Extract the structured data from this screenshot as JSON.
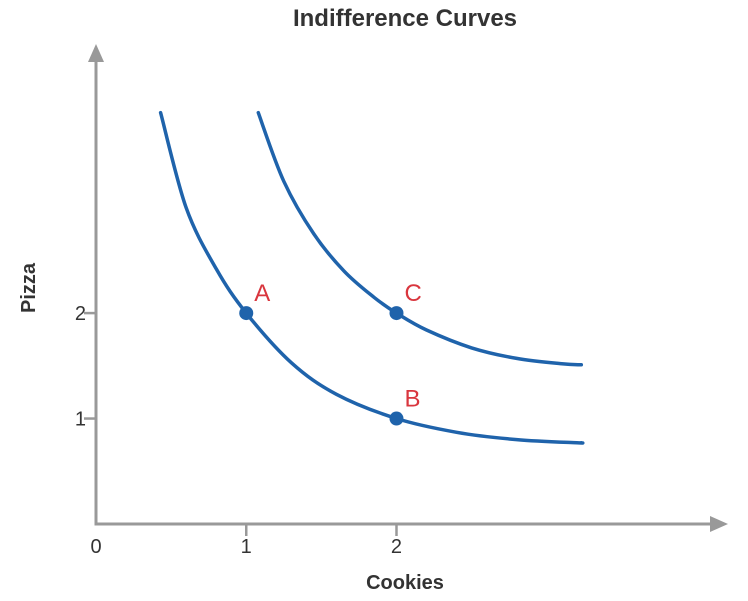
{
  "chart_data": {
    "type": "line",
    "title": "Indifference Curves",
    "xlabel": "Cookies",
    "ylabel": "Pizza",
    "origin_label": "0",
    "x_ticks": [
      {
        "value": 1,
        "label": "1"
      },
      {
        "value": 2,
        "label": "2"
      }
    ],
    "y_ticks": [
      {
        "value": 1,
        "label": "1"
      },
      {
        "value": 2,
        "label": "2"
      }
    ],
    "xlim": [
      0,
      4.1
    ],
    "ylim": [
      0,
      4.4
    ],
    "grid": false,
    "series": [
      {
        "x": [
          0.43,
          0.6,
          0.8,
          1,
          1.3,
          1.6,
          2,
          2.4,
          2.8,
          3.2,
          3.23
        ],
        "y": [
          3.9,
          3.0,
          2.42,
          2.0,
          1.53,
          1.23,
          1.0,
          0.87,
          0.8,
          0.77,
          0.77
        ]
      },
      {
        "x": [
          1.08,
          1.25,
          1.45,
          1.65,
          1.85,
          2,
          2.2,
          2.5,
          2.8,
          3.1,
          3.23
        ],
        "y": [
          3.9,
          3.25,
          2.75,
          2.4,
          2.15,
          2.0,
          1.84,
          1.67,
          1.57,
          1.52,
          1.51
        ]
      }
    ],
    "points": [
      {
        "label": "A",
        "x": 1,
        "y": 2
      },
      {
        "label": "B",
        "x": 2,
        "y": 1
      },
      {
        "label": "C",
        "x": 2,
        "y": 2
      }
    ],
    "colors": {
      "axis": "#999999",
      "curve": "#1f63ab",
      "point": "#1f63ab",
      "point_label": "#d9363e"
    }
  }
}
